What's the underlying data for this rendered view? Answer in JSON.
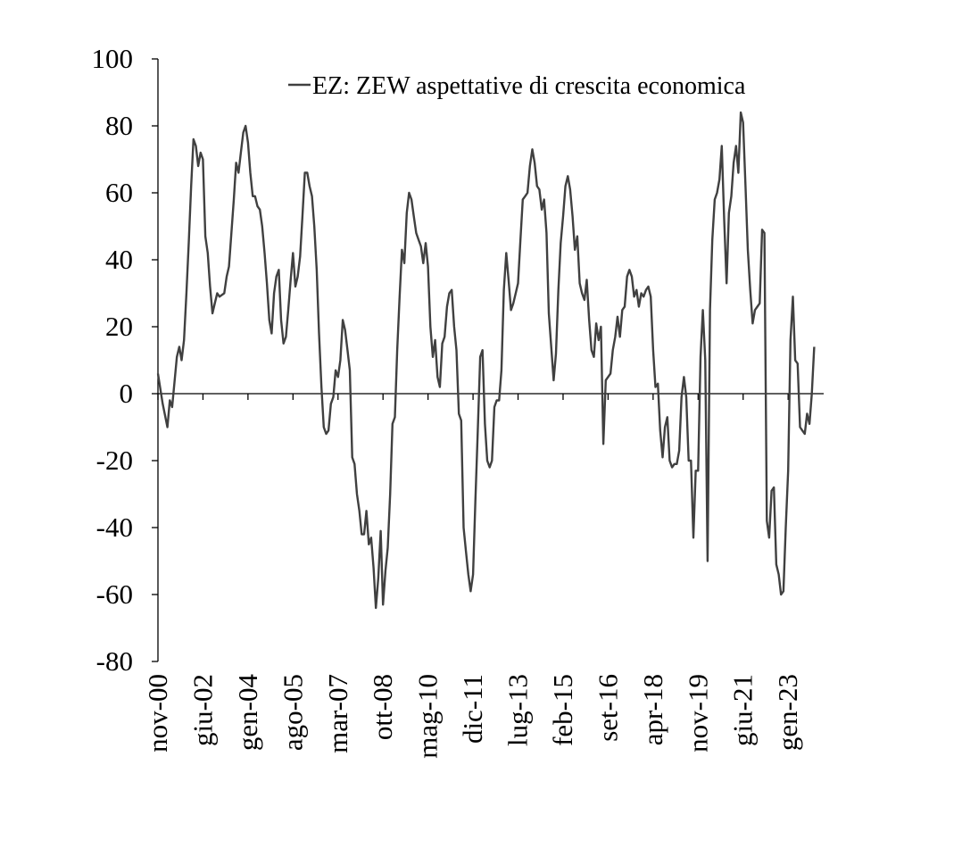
{
  "chart_data": {
    "type": "line",
    "title": "",
    "xlabel": "",
    "ylabel": "",
    "ylim": [
      -80,
      100
    ],
    "yticks": [
      100,
      80,
      60,
      40,
      20,
      0,
      -20,
      -40,
      -60,
      -80
    ],
    "x_range": [
      "2000-11",
      "2024-04"
    ],
    "xtick_labels": [
      "nov-00",
      "giu-02",
      "gen-04",
      "ago-05",
      "mar-07",
      "ott-08",
      "mag-10",
      "dic-11",
      "lug-13",
      "feb-15",
      "set-16",
      "apr-18",
      "nov-19",
      "giu-21",
      "gen-23"
    ],
    "grid": false,
    "legend_position": "top",
    "series": [
      {
        "name": "EZ: ZEW aspettative di crescita economica",
        "color": "#404040",
        "points": [
          [
            "2000-11",
            6
          ],
          [
            "2001-01",
            -3
          ],
          [
            "2001-03",
            -10
          ],
          [
            "2001-04",
            -2
          ],
          [
            "2001-05",
            -4
          ],
          [
            "2001-07",
            11
          ],
          [
            "2001-08",
            14
          ],
          [
            "2001-09",
            10
          ],
          [
            "2001-10",
            16
          ],
          [
            "2001-11",
            30
          ],
          [
            "2001-12",
            45
          ],
          [
            "2002-01",
            62
          ],
          [
            "2002-02",
            76
          ],
          [
            "2002-03",
            74
          ],
          [
            "2002-04",
            68
          ],
          [
            "2002-05",
            72
          ],
          [
            "2002-06",
            70
          ],
          [
            "2002-07",
            47
          ],
          [
            "2002-08",
            42
          ],
          [
            "2002-09",
            32
          ],
          [
            "2002-10",
            24
          ],
          [
            "2002-11",
            27
          ],
          [
            "2002-12",
            30
          ],
          [
            "2003-01",
            29
          ],
          [
            "2003-03",
            30
          ],
          [
            "2003-04",
            35
          ],
          [
            "2003-05",
            38
          ],
          [
            "2003-06",
            48
          ],
          [
            "2003-07",
            58
          ],
          [
            "2003-08",
            69
          ],
          [
            "2003-09",
            66
          ],
          [
            "2003-10",
            72
          ],
          [
            "2003-11",
            78
          ],
          [
            "2003-12",
            80
          ],
          [
            "2004-01",
            75
          ],
          [
            "2004-02",
            66
          ],
          [
            "2004-03",
            59
          ],
          [
            "2004-04",
            59
          ],
          [
            "2004-05",
            56
          ],
          [
            "2004-06",
            55
          ],
          [
            "2004-07",
            50
          ],
          [
            "2004-08",
            42
          ],
          [
            "2004-09",
            33
          ],
          [
            "2004-10",
            22
          ],
          [
            "2004-11",
            18
          ],
          [
            "2004-12",
            30
          ],
          [
            "2005-01",
            35
          ],
          [
            "2005-02",
            37
          ],
          [
            "2005-03",
            22
          ],
          [
            "2005-04",
            15
          ],
          [
            "2005-05",
            17
          ],
          [
            "2005-06",
            25
          ],
          [
            "2005-07",
            34
          ],
          [
            "2005-08",
            42
          ],
          [
            "2005-09",
            32
          ],
          [
            "2005-10",
            35
          ],
          [
            "2005-11",
            41
          ],
          [
            "2005-12",
            53
          ],
          [
            "2006-01",
            66
          ],
          [
            "2006-02",
            66
          ],
          [
            "2006-03",
            62
          ],
          [
            "2006-04",
            59
          ],
          [
            "2006-05",
            50
          ],
          [
            "2006-06",
            37
          ],
          [
            "2006-07",
            18
          ],
          [
            "2006-08",
            2
          ],
          [
            "2006-09",
            -10
          ],
          [
            "2006-10",
            -12
          ],
          [
            "2006-11",
            -11
          ],
          [
            "2006-12",
            -3
          ],
          [
            "2007-01",
            -1
          ],
          [
            "2007-02",
            7
          ],
          [
            "2007-03",
            5
          ],
          [
            "2007-04",
            10
          ],
          [
            "2007-05",
            22
          ],
          [
            "2007-06",
            19
          ],
          [
            "2007-07",
            13
          ],
          [
            "2007-08",
            7
          ],
          [
            "2007-09",
            -19
          ],
          [
            "2007-10",
            -21
          ],
          [
            "2007-11",
            -30
          ],
          [
            "2007-12",
            -35
          ],
          [
            "2008-01",
            -42
          ],
          [
            "2008-02",
            -42
          ],
          [
            "2008-03",
            -35
          ],
          [
            "2008-04",
            -45
          ],
          [
            "2008-05",
            -43
          ],
          [
            "2008-06",
            -52
          ],
          [
            "2008-07",
            -64
          ],
          [
            "2008-08",
            -55
          ],
          [
            "2008-09",
            -41
          ],
          [
            "2008-10",
            -63
          ],
          [
            "2008-11",
            -53
          ],
          [
            "2008-12",
            -46
          ],
          [
            "2009-01",
            -30
          ],
          [
            "2009-02",
            -9
          ],
          [
            "2009-03",
            -7
          ],
          [
            "2009-04",
            13
          ],
          [
            "2009-05",
            29
          ],
          [
            "2009-06",
            43
          ],
          [
            "2009-07",
            39
          ],
          [
            "2009-08",
            54
          ],
          [
            "2009-09",
            60
          ],
          [
            "2009-10",
            58
          ],
          [
            "2009-11",
            53
          ],
          [
            "2009-12",
            48
          ],
          [
            "2010-01",
            46
          ],
          [
            "2010-02",
            44
          ],
          [
            "2010-03",
            39
          ],
          [
            "2010-04",
            45
          ],
          [
            "2010-05",
            38
          ],
          [
            "2010-06",
            20
          ],
          [
            "2010-07",
            11
          ],
          [
            "2010-08",
            16
          ],
          [
            "2010-09",
            5
          ],
          [
            "2010-10",
            2
          ],
          [
            "2010-11",
            15
          ],
          [
            "2010-12",
            17
          ],
          [
            "2011-01",
            26
          ],
          [
            "2011-02",
            30
          ],
          [
            "2011-03",
            31
          ],
          [
            "2011-04",
            20
          ],
          [
            "2011-05",
            13
          ],
          [
            "2011-06",
            -6
          ],
          [
            "2011-07",
            -8
          ],
          [
            "2011-08",
            -40
          ],
          [
            "2011-09",
            -47
          ],
          [
            "2011-10",
            -54
          ],
          [
            "2011-11",
            -59
          ],
          [
            "2011-12",
            -54
          ],
          [
            "2012-01",
            -32
          ],
          [
            "2012-02",
            -11
          ],
          [
            "2012-03",
            11
          ],
          [
            "2012-04",
            13
          ],
          [
            "2012-05",
            -9
          ],
          [
            "2012-06",
            -20
          ],
          [
            "2012-07",
            -22
          ],
          [
            "2012-08",
            -20
          ],
          [
            "2012-09",
            -4
          ],
          [
            "2012-10",
            -2
          ],
          [
            "2012-11",
            -2
          ],
          [
            "2012-12",
            7
          ],
          [
            "2013-01",
            31
          ],
          [
            "2013-02",
            42
          ],
          [
            "2013-03",
            34
          ],
          [
            "2013-04",
            25
          ],
          [
            "2013-05",
            27
          ],
          [
            "2013-06",
            30
          ],
          [
            "2013-07",
            33
          ],
          [
            "2013-08",
            46
          ],
          [
            "2013-09",
            58
          ],
          [
            "2013-10",
            59
          ],
          [
            "2013-11",
            60
          ],
          [
            "2013-12",
            68
          ],
          [
            "2014-01",
            73
          ],
          [
            "2014-02",
            69
          ],
          [
            "2014-03",
            62
          ],
          [
            "2014-04",
            61
          ],
          [
            "2014-05",
            55
          ],
          [
            "2014-06",
            58
          ],
          [
            "2014-07",
            48
          ],
          [
            "2014-08",
            24
          ],
          [
            "2014-09",
            14
          ],
          [
            "2014-10",
            4
          ],
          [
            "2014-11",
            12
          ],
          [
            "2014-12",
            31
          ],
          [
            "2015-01",
            45
          ],
          [
            "2015-02",
            53
          ],
          [
            "2015-03",
            62
          ],
          [
            "2015-04",
            65
          ],
          [
            "2015-05",
            61
          ],
          [
            "2015-06",
            53
          ],
          [
            "2015-07",
            43
          ],
          [
            "2015-08",
            47
          ],
          [
            "2015-09",
            33
          ],
          [
            "2015-10",
            30
          ],
          [
            "2015-11",
            28
          ],
          [
            "2015-12",
            34
          ],
          [
            "2016-01",
            22
          ],
          [
            "2016-02",
            13
          ],
          [
            "2016-03",
            11
          ],
          [
            "2016-04",
            21
          ],
          [
            "2016-05",
            16
          ],
          [
            "2016-06",
            20
          ],
          [
            "2016-07",
            -15
          ],
          [
            "2016-08",
            4
          ],
          [
            "2016-09",
            5
          ],
          [
            "2016-10",
            6
          ],
          [
            "2016-11",
            13
          ],
          [
            "2016-12",
            17
          ],
          [
            "2017-01",
            23
          ],
          [
            "2017-02",
            17
          ],
          [
            "2017-03",
            25
          ],
          [
            "2017-04",
            26
          ],
          [
            "2017-05",
            35
          ],
          [
            "2017-06",
            37
          ],
          [
            "2017-07",
            35
          ],
          [
            "2017-08",
            29
          ],
          [
            "2017-09",
            31
          ],
          [
            "2017-10",
            26
          ],
          [
            "2017-11",
            30
          ],
          [
            "2017-12",
            29
          ],
          [
            "2018-01",
            31
          ],
          [
            "2018-02",
            32
          ],
          [
            "2018-03",
            29
          ],
          [
            "2018-04",
            13
          ],
          [
            "2018-05",
            2
          ],
          [
            "2018-06",
            3
          ],
          [
            "2018-07",
            -11
          ],
          [
            "2018-08",
            -19
          ],
          [
            "2018-09",
            -10
          ],
          [
            "2018-10",
            -7
          ],
          [
            "2018-11",
            -20
          ],
          [
            "2018-12",
            -22
          ],
          [
            "2019-01",
            -21
          ],
          [
            "2019-02",
            -21
          ],
          [
            "2019-03",
            -17
          ],
          [
            "2019-04",
            -1
          ],
          [
            "2019-05",
            5
          ],
          [
            "2019-06",
            -1
          ],
          [
            "2019-07",
            -20
          ],
          [
            "2019-08",
            -20
          ],
          [
            "2019-09",
            -43
          ],
          [
            "2019-10",
            -23
          ],
          [
            "2019-11",
            -23
          ],
          [
            "2019-12",
            11
          ],
          [
            "2020-01",
            25
          ],
          [
            "2020-02",
            10
          ],
          [
            "2020-03",
            -50
          ],
          [
            "2020-04",
            25
          ],
          [
            "2020-05",
            46
          ],
          [
            "2020-06",
            58
          ],
          [
            "2020-07",
            60
          ],
          [
            "2020-08",
            64
          ],
          [
            "2020-09",
            74
          ],
          [
            "2020-10",
            52
          ],
          [
            "2020-11",
            33
          ],
          [
            "2020-12",
            54
          ],
          [
            "2021-01",
            59
          ],
          [
            "2021-02",
            69
          ],
          [
            "2021-03",
            74
          ],
          [
            "2021-04",
            66
          ],
          [
            "2021-05",
            84
          ],
          [
            "2021-06",
            81
          ],
          [
            "2021-07",
            62
          ],
          [
            "2021-08",
            43
          ],
          [
            "2021-09",
            31
          ],
          [
            "2021-10",
            21
          ],
          [
            "2021-11",
            25
          ],
          [
            "2021-12",
            26
          ],
          [
            "2022-01",
            27
          ],
          [
            "2022-02",
            49
          ],
          [
            "2022-03",
            48
          ],
          [
            "2022-04",
            -38
          ],
          [
            "2022-05",
            -43
          ],
          [
            "2022-06",
            -29
          ],
          [
            "2022-07",
            -28
          ],
          [
            "2022-08",
            -51
          ],
          [
            "2022-09",
            -54
          ],
          [
            "2022-10",
            -60
          ],
          [
            "2022-11",
            -59
          ],
          [
            "2022-12",
            -40
          ],
          [
            "2023-01",
            -23
          ],
          [
            "2023-02",
            16
          ],
          [
            "2023-03",
            29
          ],
          [
            "2023-04",
            10
          ],
          [
            "2023-05",
            9
          ],
          [
            "2023-06",
            -10
          ],
          [
            "2023-07",
            -11
          ],
          [
            "2023-08",
            -12
          ],
          [
            "2023-09",
            -6
          ],
          [
            "2023-10",
            -9
          ],
          [
            "2023-11",
            0
          ],
          [
            "2023-12",
            14
          ]
        ]
      }
    ]
  }
}
